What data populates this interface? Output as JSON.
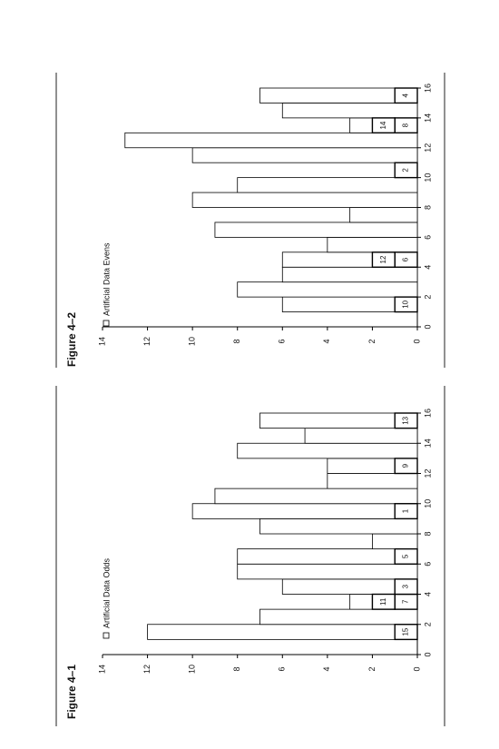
{
  "chart_data": [
    {
      "type": "histogram",
      "title": "Figure 4–1",
      "series": [
        {
          "name": "Artificial Data Odds",
          "color": "#ffffff"
        }
      ],
      "bins": [
        1,
        2,
        3,
        4,
        5,
        6,
        7,
        8,
        9,
        10,
        11,
        12,
        13,
        14,
        15,
        16
      ],
      "values": [
        12,
        7,
        3,
        6,
        8,
        8,
        2,
        7,
        10,
        9,
        4,
        4,
        8,
        5,
        7
      ],
      "annotations": [
        {
          "bar": 0,
          "level": 0,
          "label": "15"
        },
        {
          "bar": 2,
          "level": 0,
          "label": "7"
        },
        {
          "bar": 2,
          "level": 1,
          "label": "11"
        },
        {
          "bar": 3,
          "level": 0,
          "label": "3"
        },
        {
          "bar": 5,
          "level": 0,
          "label": "5"
        },
        {
          "bar": 8,
          "level": 0,
          "label": "1"
        },
        {
          "bar": 11,
          "level": 0,
          "label": "9"
        },
        {
          "bar": 14,
          "level": 0,
          "label": "13"
        }
      ],
      "xlim": [
        0,
        16
      ],
      "xticks": [
        0,
        2,
        4,
        6,
        8,
        10,
        12,
        14,
        16
      ],
      "ylim": [
        0,
        14
      ],
      "yticks": [
        0,
        2,
        4,
        6,
        8,
        10,
        12,
        14
      ]
    },
    {
      "type": "histogram",
      "title": "Figure 4–2",
      "series": [
        {
          "name": "Artificial Data Evens",
          "color": "#ffffff"
        }
      ],
      "bins": [
        1,
        2,
        3,
        4,
        5,
        6,
        7,
        8,
        9,
        10,
        11,
        12,
        13,
        14,
        15,
        16
      ],
      "values": [
        6,
        8,
        6,
        6,
        4,
        9,
        3,
        10,
        8,
        1,
        10,
        13,
        3,
        6,
        7
      ],
      "annotations": [
        {
          "bar": 0,
          "level": 0,
          "label": "10"
        },
        {
          "bar": 3,
          "level": 0,
          "label": "6"
        },
        {
          "bar": 3,
          "level": 1,
          "label": "12"
        },
        {
          "bar": 9,
          "level": 0,
          "label": "2"
        },
        {
          "bar": 12,
          "level": 0,
          "label": "8"
        },
        {
          "bar": 12,
          "level": 1,
          "label": "14"
        },
        {
          "bar": 14,
          "level": 0,
          "label": "4"
        }
      ],
      "xlim": [
        0,
        16
      ],
      "xticks": [
        0,
        2,
        4,
        6,
        8,
        10,
        12,
        14,
        16
      ],
      "ylim": [
        0,
        14
      ],
      "yticks": [
        0,
        2,
        4,
        6,
        8,
        10,
        12,
        14
      ]
    }
  ]
}
